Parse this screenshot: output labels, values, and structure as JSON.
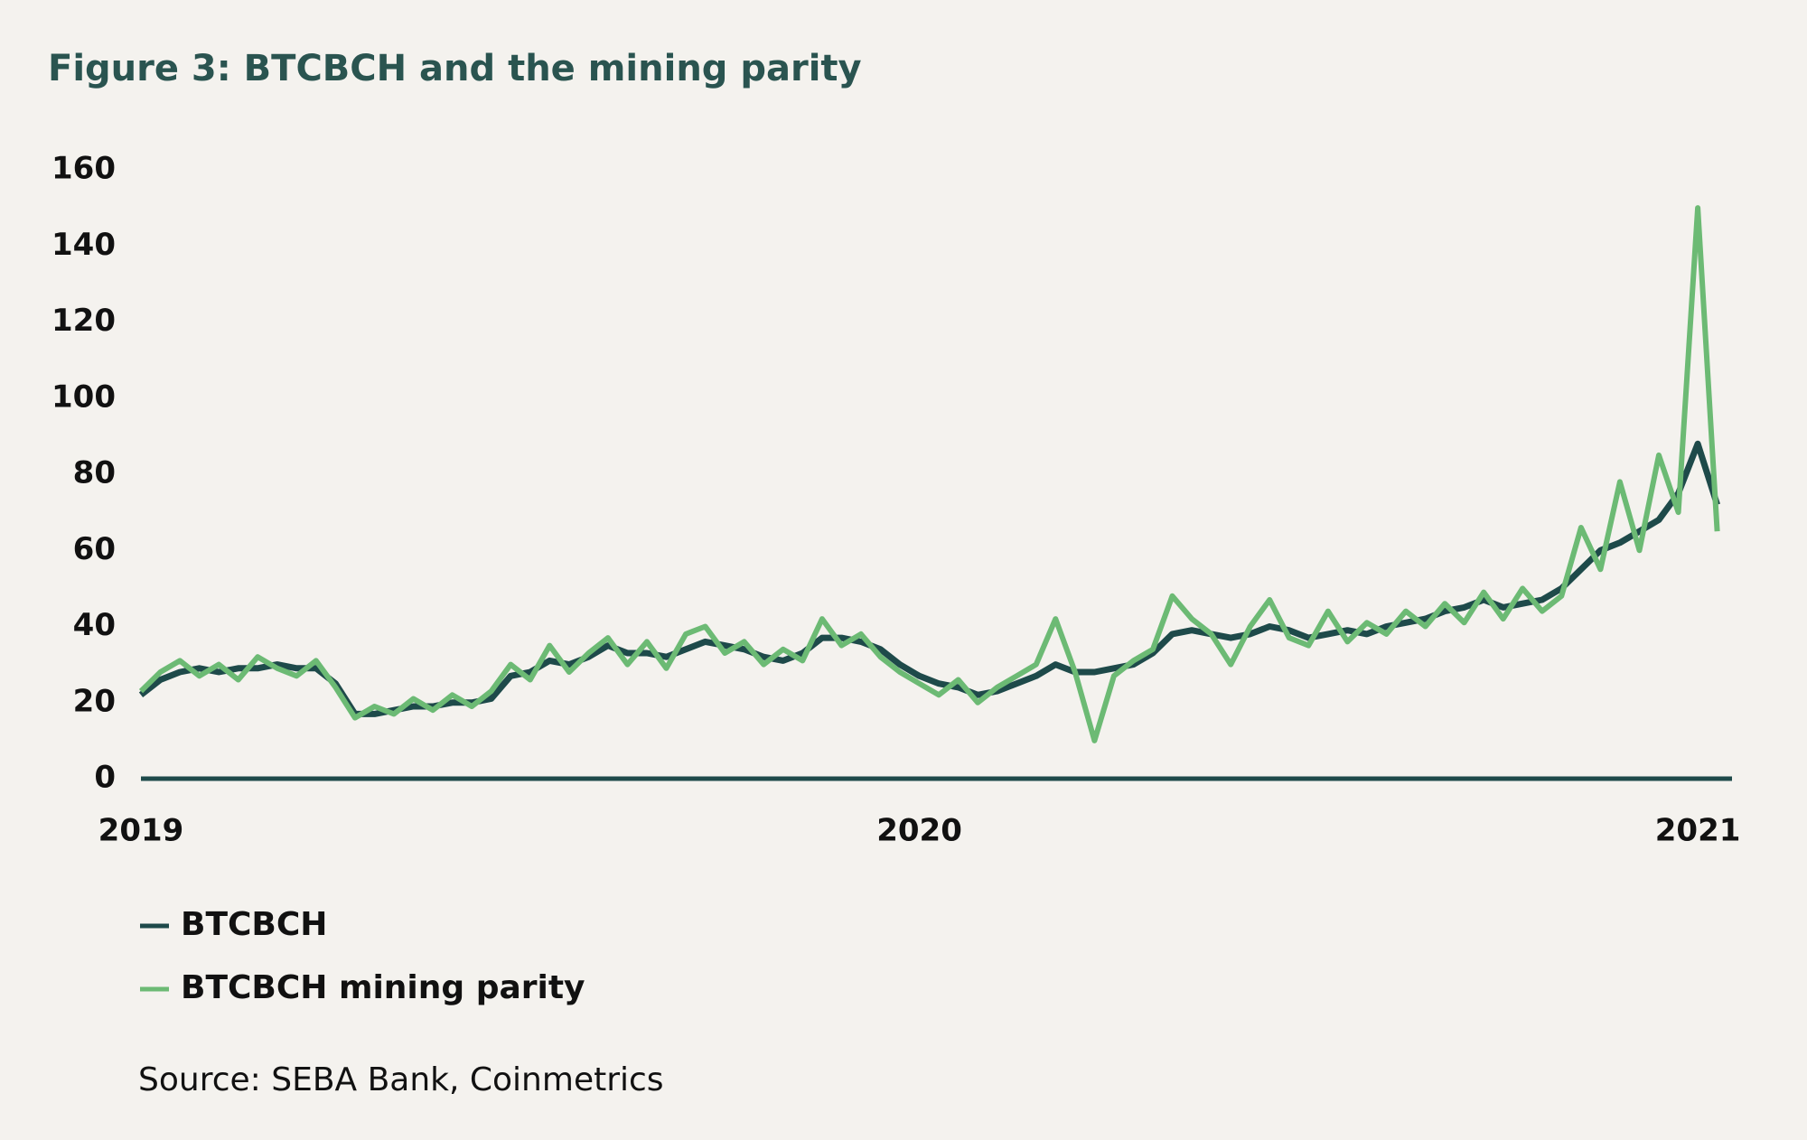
{
  "chart_data": {
    "type": "line",
    "title": "Figure 3: BTCBCH and the mining parity",
    "source": "Source: SEBA Bank, Coinmetrics",
    "x": [
      2019,
      2019.025,
      2019.05,
      2019.075,
      2019.1,
      2019.125,
      2019.15,
      2019.175,
      2019.2,
      2019.225,
      2019.25,
      2019.275,
      2019.3,
      2019.325,
      2019.35,
      2019.375,
      2019.4,
      2019.425,
      2019.45,
      2019.475,
      2019.5,
      2019.525,
      2019.55,
      2019.575,
      2019.6,
      2019.625,
      2019.65,
      2019.675,
      2019.7,
      2019.725,
      2019.75,
      2019.775,
      2019.8,
      2019.825,
      2019.85,
      2019.875,
      2019.9,
      2019.925,
      2019.95,
      2019.975,
      2020,
      2020.025,
      2020.05,
      2020.075,
      2020.1,
      2020.125,
      2020.15,
      2020.175,
      2020.2,
      2020.225,
      2020.25,
      2020.275,
      2020.3,
      2020.325,
      2020.35,
      2020.375,
      2020.4,
      2020.425,
      2020.45,
      2020.475,
      2020.5,
      2020.525,
      2020.55,
      2020.575,
      2020.6,
      2020.625,
      2020.65,
      2020.675,
      2020.7,
      2020.725,
      2020.75,
      2020.775,
      2020.8,
      2020.825,
      2020.85,
      2020.875,
      2020.9,
      2020.925,
      2020.95,
      2020.975,
      2021,
      2021.025
    ],
    "series": [
      {
        "name": "BTCBCH",
        "color": "#1e4a4a",
        "values": [
          22,
          26,
          28,
          29,
          28,
          29,
          29,
          30,
          29,
          29,
          25,
          17,
          17,
          18,
          19,
          19,
          20,
          20,
          21,
          27,
          28,
          31,
          30,
          32,
          35,
          33,
          33,
          32,
          34,
          36,
          35,
          34,
          32,
          31,
          33,
          37,
          37,
          36,
          34,
          30,
          27,
          25,
          24,
          22,
          23,
          25,
          27,
          30,
          28,
          28,
          29,
          30,
          33,
          38,
          39,
          38,
          37,
          38,
          40,
          39,
          37,
          38,
          39,
          38,
          40,
          41,
          42,
          44,
          45,
          47,
          45,
          46,
          47,
          50,
          55,
          60,
          62,
          65,
          68,
          75,
          88,
          72
        ]
      },
      {
        "name": "BTCBCH mining parity",
        "color": "#6cba74",
        "values": [
          23,
          28,
          31,
          27,
          30,
          26,
          32,
          29,
          27,
          31,
          24,
          16,
          19,
          17,
          21,
          18,
          22,
          19,
          23,
          30,
          26,
          35,
          28,
          33,
          37,
          30,
          36,
          29,
          38,
          40,
          33,
          36,
          30,
          34,
          31,
          42,
          35,
          38,
          32,
          28,
          25,
          22,
          26,
          20,
          24,
          27,
          30,
          42,
          28,
          10,
          27,
          31,
          34,
          48,
          42,
          38,
          30,
          40,
          47,
          37,
          35,
          44,
          36,
          41,
          38,
          44,
          40,
          46,
          41,
          49,
          42,
          50,
          44,
          48,
          66,
          55,
          78,
          60,
          85,
          70,
          150,
          65
        ]
      }
    ],
    "xlim": [
      2019,
      2021.044
    ],
    "xticks": [
      2019,
      2020,
      2021
    ],
    "ylim": [
      0,
      160
    ],
    "yticks": [
      0,
      20,
      40,
      60,
      80,
      100,
      120,
      140,
      160
    ],
    "grid": false,
    "legend": "bottom-left"
  }
}
